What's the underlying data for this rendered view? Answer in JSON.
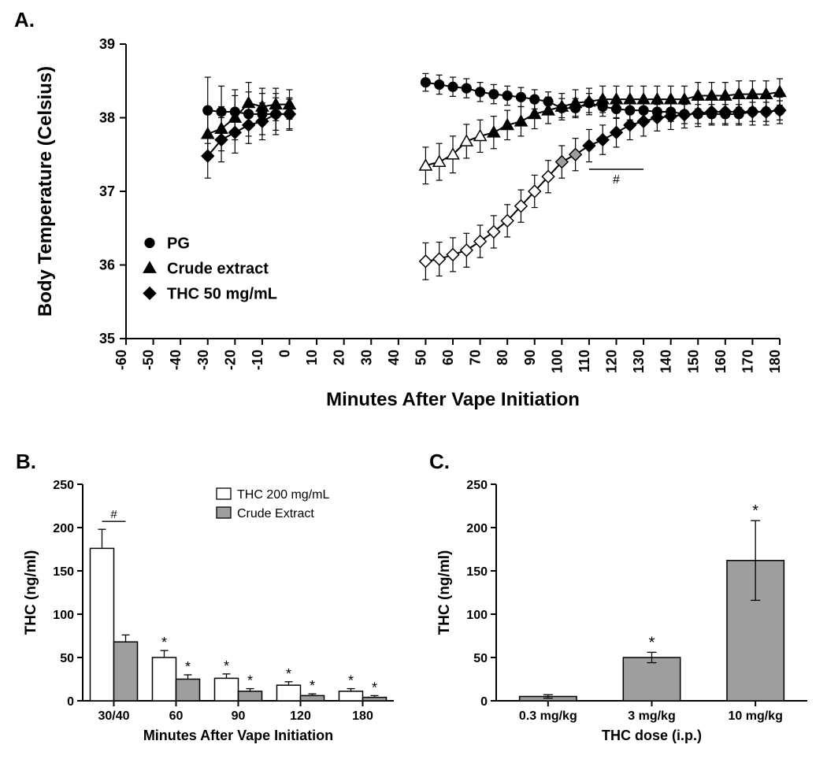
{
  "global": {
    "font_family": "Arial, Helvetica, sans-serif",
    "panel_label_fontsize": 26,
    "axis_title_fontsize": 24,
    "tick_fontsize": 18,
    "tick_fontsize_small": 16,
    "axis_color": "#000000",
    "background": "#ffffff"
  },
  "panelA": {
    "label": "A.",
    "type": "line-scatter",
    "xlabel": "Minutes After Vape Initiation",
    "ylabel": "Body Temperature (Celsius)",
    "ylim": [
      35,
      39
    ],
    "ytick_step": 1,
    "xticks": [
      -60,
      -50,
      -40,
      -30,
      -20,
      -10,
      0,
      10,
      20,
      30,
      40,
      50,
      60,
      70,
      80,
      90,
      100,
      110,
      120,
      130,
      140,
      150,
      160,
      170,
      180
    ],
    "legend": [
      {
        "label": "PG",
        "marker": "circle"
      },
      {
        "label": "Crude extract",
        "marker": "triangle"
      },
      {
        "label": "THC 50 mg/mL",
        "marker": "diamond"
      }
    ],
    "hash_label": "#",
    "hash_range_x": [
      110,
      130
    ],
    "hash_y": 37.3,
    "marker_size": 9,
    "line_width": 2,
    "error_cap": 4,
    "colors": {
      "black": "#000000",
      "white": "#ffffff",
      "gray": "#9e9e9e"
    },
    "series": {
      "PG": {
        "marker": "circle",
        "points": [
          {
            "x": -30,
            "y": 38.1,
            "err": 0.45,
            "fill": "black"
          },
          {
            "x": -25,
            "y": 38.08,
            "err": 0.35,
            "fill": "black"
          },
          {
            "x": -20,
            "y": 38.08,
            "err": 0.3,
            "fill": "black"
          },
          {
            "x": -15,
            "y": 38.05,
            "err": 0.3,
            "fill": "black"
          },
          {
            "x": -10,
            "y": 38.05,
            "err": 0.28,
            "fill": "black"
          },
          {
            "x": -5,
            "y": 38.05,
            "err": 0.28,
            "fill": "black"
          },
          {
            "x": 0,
            "y": 38.05,
            "err": 0.22,
            "fill": "black"
          },
          {
            "x": 50,
            "y": 38.48,
            "err": 0.12,
            "fill": "black"
          },
          {
            "x": 55,
            "y": 38.45,
            "err": 0.13,
            "fill": "black"
          },
          {
            "x": 60,
            "y": 38.42,
            "err": 0.13,
            "fill": "black"
          },
          {
            "x": 65,
            "y": 38.4,
            "err": 0.13,
            "fill": "black"
          },
          {
            "x": 70,
            "y": 38.35,
            "err": 0.13,
            "fill": "black"
          },
          {
            "x": 75,
            "y": 38.32,
            "err": 0.13,
            "fill": "black"
          },
          {
            "x": 80,
            "y": 38.3,
            "err": 0.13,
            "fill": "black"
          },
          {
            "x": 85,
            "y": 38.28,
            "err": 0.13,
            "fill": "black"
          },
          {
            "x": 90,
            "y": 38.25,
            "err": 0.13,
            "fill": "black"
          },
          {
            "x": 95,
            "y": 38.22,
            "err": 0.13,
            "fill": "black"
          },
          {
            "x": 100,
            "y": 38.13,
            "err": 0.13,
            "fill": "black"
          },
          {
            "x": 105,
            "y": 38.13,
            "err": 0.13,
            "fill": "black"
          },
          {
            "x": 110,
            "y": 38.2,
            "err": 0.13,
            "fill": "black"
          },
          {
            "x": 115,
            "y": 38.15,
            "err": 0.13,
            "fill": "black"
          },
          {
            "x": 120,
            "y": 38.12,
            "err": 0.13,
            "fill": "black"
          },
          {
            "x": 125,
            "y": 38.1,
            "err": 0.13,
            "fill": "black"
          },
          {
            "x": 130,
            "y": 38.1,
            "err": 0.13,
            "fill": "black"
          },
          {
            "x": 135,
            "y": 38.08,
            "err": 0.13,
            "fill": "black"
          },
          {
            "x": 140,
            "y": 38.08,
            "err": 0.13,
            "fill": "black"
          },
          {
            "x": 145,
            "y": 38.05,
            "err": 0.13,
            "fill": "black"
          },
          {
            "x": 150,
            "y": 38.05,
            "err": 0.13,
            "fill": "black"
          },
          {
            "x": 155,
            "y": 38.05,
            "err": 0.13,
            "fill": "black"
          },
          {
            "x": 160,
            "y": 38.05,
            "err": 0.13,
            "fill": "black"
          },
          {
            "x": 165,
            "y": 38.05,
            "err": 0.13,
            "fill": "black"
          },
          {
            "x": 170,
            "y": 38.08,
            "err": 0.13,
            "fill": "black"
          },
          {
            "x": 175,
            "y": 38.08,
            "err": 0.13,
            "fill": "black"
          },
          {
            "x": 180,
            "y": 38.1,
            "err": 0.13,
            "fill": "black"
          }
        ]
      },
      "Crude": {
        "marker": "triangle",
        "points": [
          {
            "x": -30,
            "y": 37.78,
            "err": 0.35,
            "fill": "black"
          },
          {
            "x": -25,
            "y": 37.85,
            "err": 0.3,
            "fill": "black"
          },
          {
            "x": -20,
            "y": 38.0,
            "err": 0.3,
            "fill": "black"
          },
          {
            "x": -15,
            "y": 38.2,
            "err": 0.28,
            "fill": "black"
          },
          {
            "x": -10,
            "y": 38.15,
            "err": 0.25,
            "fill": "black"
          },
          {
            "x": -5,
            "y": 38.18,
            "err": 0.22,
            "fill": "black"
          },
          {
            "x": 0,
            "y": 38.18,
            "err": 0.2,
            "fill": "black"
          },
          {
            "x": 50,
            "y": 37.35,
            "err": 0.25,
            "fill": "white"
          },
          {
            "x": 55,
            "y": 37.4,
            "err": 0.25,
            "fill": "white"
          },
          {
            "x": 60,
            "y": 37.5,
            "err": 0.25,
            "fill": "white"
          },
          {
            "x": 65,
            "y": 37.68,
            "err": 0.23,
            "fill": "white"
          },
          {
            "x": 70,
            "y": 37.75,
            "err": 0.22,
            "fill": "white"
          },
          {
            "x": 75,
            "y": 37.8,
            "err": 0.22,
            "fill": "black"
          },
          {
            "x": 80,
            "y": 37.9,
            "err": 0.2,
            "fill": "black"
          },
          {
            "x": 85,
            "y": 37.95,
            "err": 0.2,
            "fill": "black"
          },
          {
            "x": 90,
            "y": 38.05,
            "err": 0.2,
            "fill": "black"
          },
          {
            "x": 95,
            "y": 38.1,
            "err": 0.18,
            "fill": "black"
          },
          {
            "x": 100,
            "y": 38.15,
            "err": 0.18,
            "fill": "black"
          },
          {
            "x": 105,
            "y": 38.2,
            "err": 0.18,
            "fill": "black"
          },
          {
            "x": 110,
            "y": 38.22,
            "err": 0.18,
            "fill": "black"
          },
          {
            "x": 115,
            "y": 38.25,
            "err": 0.18,
            "fill": "black"
          },
          {
            "x": 120,
            "y": 38.25,
            "err": 0.18,
            "fill": "black"
          },
          {
            "x": 125,
            "y": 38.25,
            "err": 0.18,
            "fill": "black"
          },
          {
            "x": 130,
            "y": 38.25,
            "err": 0.18,
            "fill": "black"
          },
          {
            "x": 135,
            "y": 38.25,
            "err": 0.18,
            "fill": "black"
          },
          {
            "x": 140,
            "y": 38.25,
            "err": 0.18,
            "fill": "black"
          },
          {
            "x": 145,
            "y": 38.25,
            "err": 0.18,
            "fill": "black"
          },
          {
            "x": 150,
            "y": 38.3,
            "err": 0.18,
            "fill": "black"
          },
          {
            "x": 155,
            "y": 38.3,
            "err": 0.18,
            "fill": "black"
          },
          {
            "x": 160,
            "y": 38.3,
            "err": 0.18,
            "fill": "black"
          },
          {
            "x": 165,
            "y": 38.32,
            "err": 0.18,
            "fill": "black"
          },
          {
            "x": 170,
            "y": 38.32,
            "err": 0.18,
            "fill": "black"
          },
          {
            "x": 175,
            "y": 38.32,
            "err": 0.18,
            "fill": "black"
          },
          {
            "x": 180,
            "y": 38.35,
            "err": 0.18,
            "fill": "black"
          }
        ]
      },
      "THC50": {
        "marker": "diamond",
        "points": [
          {
            "x": -30,
            "y": 37.48,
            "err": 0.3,
            "fill": "black"
          },
          {
            "x": -25,
            "y": 37.7,
            "err": 0.3,
            "fill": "black"
          },
          {
            "x": -20,
            "y": 37.8,
            "err": 0.28,
            "fill": "black"
          },
          {
            "x": -15,
            "y": 37.9,
            "err": 0.25,
            "fill": "black"
          },
          {
            "x": -10,
            "y": 37.95,
            "err": 0.25,
            "fill": "black"
          },
          {
            "x": -5,
            "y": 38.05,
            "err": 0.22,
            "fill": "black"
          },
          {
            "x": 0,
            "y": 38.05,
            "err": 0.2,
            "fill": "black"
          },
          {
            "x": 50,
            "y": 36.05,
            "err": 0.25,
            "fill": "white"
          },
          {
            "x": 55,
            "y": 36.08,
            "err": 0.23,
            "fill": "white"
          },
          {
            "x": 60,
            "y": 36.14,
            "err": 0.23,
            "fill": "white"
          },
          {
            "x": 65,
            "y": 36.2,
            "err": 0.23,
            "fill": "white"
          },
          {
            "x": 70,
            "y": 36.32,
            "err": 0.22,
            "fill": "white"
          },
          {
            "x": 75,
            "y": 36.45,
            "err": 0.22,
            "fill": "white"
          },
          {
            "x": 80,
            "y": 36.6,
            "err": 0.22,
            "fill": "white"
          },
          {
            "x": 85,
            "y": 36.8,
            "err": 0.22,
            "fill": "white"
          },
          {
            "x": 90,
            "y": 37.0,
            "err": 0.22,
            "fill": "white"
          },
          {
            "x": 95,
            "y": 37.2,
            "err": 0.22,
            "fill": "white"
          },
          {
            "x": 100,
            "y": 37.4,
            "err": 0.22,
            "fill": "gray"
          },
          {
            "x": 105,
            "y": 37.5,
            "err": 0.22,
            "fill": "gray"
          },
          {
            "x": 110,
            "y": 37.62,
            "err": 0.22,
            "fill": "black"
          },
          {
            "x": 115,
            "y": 37.7,
            "err": 0.2,
            "fill": "black"
          },
          {
            "x": 120,
            "y": 37.8,
            "err": 0.2,
            "fill": "black"
          },
          {
            "x": 125,
            "y": 37.9,
            "err": 0.2,
            "fill": "black"
          },
          {
            "x": 130,
            "y": 37.95,
            "err": 0.2,
            "fill": "black"
          },
          {
            "x": 135,
            "y": 38.0,
            "err": 0.18,
            "fill": "black"
          },
          {
            "x": 140,
            "y": 38.02,
            "err": 0.18,
            "fill": "black"
          },
          {
            "x": 145,
            "y": 38.04,
            "err": 0.18,
            "fill": "black"
          },
          {
            "x": 150,
            "y": 38.06,
            "err": 0.18,
            "fill": "black"
          },
          {
            "x": 155,
            "y": 38.08,
            "err": 0.18,
            "fill": "black"
          },
          {
            "x": 160,
            "y": 38.08,
            "err": 0.18,
            "fill": "black"
          },
          {
            "x": 165,
            "y": 38.08,
            "err": 0.18,
            "fill": "black"
          },
          {
            "x": 170,
            "y": 38.08,
            "err": 0.18,
            "fill": "black"
          },
          {
            "x": 175,
            "y": 38.08,
            "err": 0.18,
            "fill": "black"
          },
          {
            "x": 180,
            "y": 38.1,
            "err": 0.18,
            "fill": "black"
          }
        ]
      }
    }
  },
  "panelB": {
    "label": "B.",
    "type": "grouped-bar",
    "xlabel": "Minutes After Vape Initiation",
    "ylabel": "THC (ng/ml)",
    "ylim": [
      0,
      250
    ],
    "ytick_step": 50,
    "categories": [
      "30/40",
      "60",
      "90",
      "120",
      "180"
    ],
    "legend": [
      {
        "label": "THC 200 mg/mL",
        "fill": "#ffffff"
      },
      {
        "label": "Crude Extract",
        "fill": "#9e9e9e"
      }
    ],
    "hash_label": "#",
    "bar_colors": {
      "THC200": "#ffffff",
      "Crude": "#9e9e9e"
    },
    "border_color": "#000000",
    "bar_width": 0.38,
    "series": {
      "THC200": [
        {
          "v": 176,
          "err": 22,
          "star": false
        },
        {
          "v": 50,
          "err": 8,
          "star": true
        },
        {
          "v": 26,
          "err": 5,
          "star": true
        },
        {
          "v": 18,
          "err": 4,
          "star": true
        },
        {
          "v": 11,
          "err": 3,
          "star": true
        }
      ],
      "Crude": [
        {
          "v": 68,
          "err": 8,
          "star": false
        },
        {
          "v": 25,
          "err": 5,
          "star": true
        },
        {
          "v": 11,
          "err": 3,
          "star": true
        },
        {
          "v": 6,
          "err": 2,
          "star": true
        },
        {
          "v": 4,
          "err": 2,
          "star": true
        }
      ]
    },
    "star": "*"
  },
  "panelC": {
    "label": "C.",
    "type": "bar",
    "xlabel": "THC dose (i.p.)",
    "ylabel": "THC (ng/ml)",
    "ylim": [
      0,
      250
    ],
    "ytick_step": 50,
    "categories": [
      "0.3 mg/kg",
      "3 mg/kg",
      "10 mg/kg"
    ],
    "bar_color": "#9e9e9e",
    "border_color": "#000000",
    "bar_width": 0.55,
    "series": [
      {
        "v": 5,
        "err": 2,
        "star": false
      },
      {
        "v": 50,
        "err": 6,
        "star": true
      },
      {
        "v": 162,
        "err": 46,
        "star": true
      }
    ],
    "star": "*"
  }
}
